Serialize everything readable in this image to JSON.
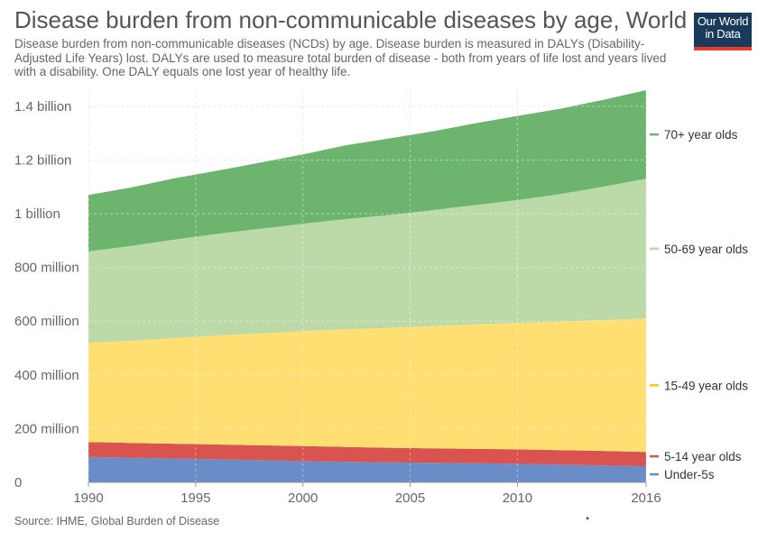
{
  "header": {
    "title": "Disease burden from non-communicable diseases by age, World",
    "subtitle": "Disease burden from non-communicable diseases (NCDs) by age. Disease burden is measured in DALYs (Disability-Adjusted Life Years) lost. DALYs are used to measure total burden of disease - both from years of life lost and years lived with a disability. One DALY equals one lost year of healthy life."
  },
  "logo": {
    "line1": "Our World",
    "line2": "in Data"
  },
  "footer": {
    "source": "Source: IHME, Global Burden of Disease",
    "dot": "•"
  },
  "chart_data": {
    "type": "area",
    "stacked": true,
    "x": [
      1990,
      1992,
      1994,
      1996,
      1998,
      2000,
      2002,
      2004,
      2006,
      2008,
      2010,
      2012,
      2014,
      2016
    ],
    "xticks": [
      1990,
      1995,
      2000,
      2005,
      2010,
      2016
    ],
    "ylim": [
      0,
      1460000000
    ],
    "yticks": [
      {
        "value": 0,
        "label": "0"
      },
      {
        "value": 200000000,
        "label": "200 million"
      },
      {
        "value": 400000000,
        "label": "400 million"
      },
      {
        "value": 600000000,
        "label": "600 million"
      },
      {
        "value": 800000000,
        "label": "800 million"
      },
      {
        "value": 1000000000,
        "label": "1 billion"
      },
      {
        "value": 1200000000,
        "label": "1.2 billion"
      },
      {
        "value": 1400000000,
        "label": "1.4 billion"
      }
    ],
    "grid": true,
    "legend_position": "right",
    "series": [
      {
        "name": "Under-5s",
        "color": "#6a8cc7",
        "values": [
          95000000,
          92000000,
          89000000,
          86000000,
          83000000,
          80000000,
          77000000,
          75000000,
          73000000,
          71000000,
          69000000,
          66000000,
          63000000,
          60000000
        ]
      },
      {
        "name": "5-14 year olds",
        "color": "#d9534f",
        "values": [
          55000000,
          55000000,
          55000000,
          55000000,
          55000000,
          55000000,
          55000000,
          54000000,
          54000000,
          54000000,
          54000000,
          54000000,
          54000000,
          53000000
        ]
      },
      {
        "name": "15-49 year olds",
        "color": "#ffdf72",
        "values": [
          370000000,
          380000000,
          393000000,
          406000000,
          416000000,
          428000000,
          438000000,
          446000000,
          455000000,
          463000000,
          470000000,
          478000000,
          487000000,
          497000000
        ]
      },
      {
        "name": "50-69 year olds",
        "color": "#bcdaa8",
        "values": [
          340000000,
          353000000,
          367000000,
          378000000,
          390000000,
          400000000,
          410000000,
          420000000,
          431000000,
          444000000,
          458000000,
          475000000,
          497000000,
          520000000
        ]
      },
      {
        "name": "70+ year olds",
        "color": "#6db46f",
        "values": [
          210000000,
          218000000,
          228000000,
          235000000,
          246000000,
          258000000,
          275000000,
          285000000,
          293000000,
          304000000,
          313000000,
          318000000,
          323000000,
          330000000
        ]
      }
    ]
  }
}
